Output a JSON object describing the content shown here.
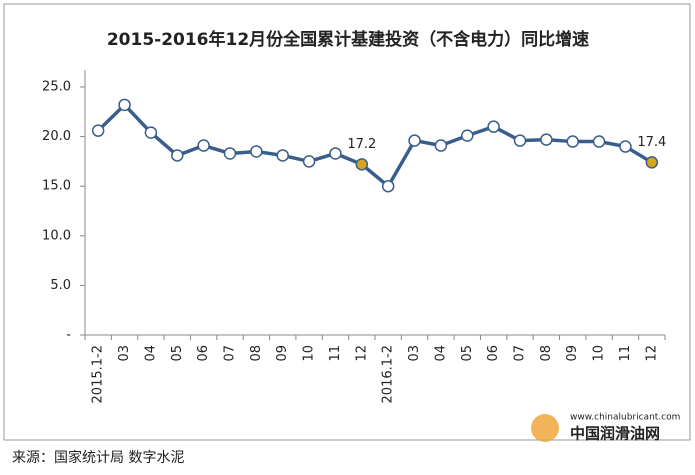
{
  "chart_data": {
    "type": "line",
    "title": "2015-2016年12月份全国累计基建投资（不含电力）同比增速",
    "categories": [
      "2015.1-2",
      "03",
      "04",
      "05",
      "06",
      "07",
      "08",
      "09",
      "10",
      "11",
      "12",
      "2016.1-2",
      "03",
      "04",
      "05",
      "06",
      "07",
      "08",
      "09",
      "10",
      "11",
      "12"
    ],
    "series": [
      {
        "name": "同比增速",
        "color": "#3a5e8c",
        "values": [
          20.6,
          23.2,
          20.4,
          18.1,
          19.1,
          18.3,
          18.5,
          18.1,
          17.5,
          18.3,
          17.2,
          15.0,
          19.6,
          19.1,
          20.1,
          21.0,
          19.6,
          19.7,
          19.5,
          19.5,
          19.0,
          17.4
        ],
        "value_labels": [
          null,
          null,
          null,
          null,
          null,
          null,
          null,
          null,
          null,
          null,
          "17.2",
          null,
          null,
          null,
          null,
          null,
          null,
          null,
          null,
          null,
          null,
          "17.4"
        ],
        "marker_colors": [
          "#ffffff",
          "#ffffff",
          "#ffffff",
          "#ffffff",
          "#ffffff",
          "#ffffff",
          "#ffffff",
          "#ffffff",
          "#ffffff",
          "#ffffff",
          "#d9a51f",
          "#ffffff",
          "#ffffff",
          "#ffffff",
          "#ffffff",
          "#ffffff",
          "#ffffff",
          "#ffffff",
          "#ffffff",
          "#ffffff",
          "#ffffff",
          "#d9a51f"
        ]
      }
    ],
    "ylim": [
      0,
      25
    ],
    "yticks": [
      {
        "value": 0,
        "label": "-"
      },
      {
        "value": 5,
        "label": "5.0"
      },
      {
        "value": 10,
        "label": "10.0"
      },
      {
        "value": 15,
        "label": "15.0"
      },
      {
        "value": 20,
        "label": "20.0"
      },
      {
        "value": 25,
        "label": "25.0"
      }
    ],
    "source": "来源：国家统计局  数字水泥",
    "watermark_url": "www.chinalubricant.com",
    "watermark_name": "中国润滑油网"
  }
}
